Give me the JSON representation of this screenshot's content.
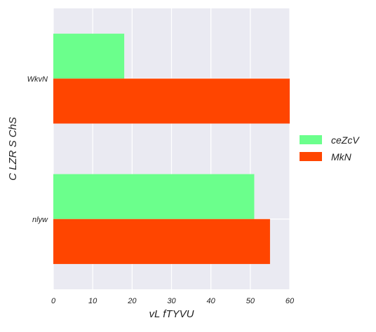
{
  "chart_data": {
    "type": "bar",
    "orientation": "horizontal",
    "title": "",
    "xlabel": "vL fTYVU",
    "ylabel": "C LZR S ChS",
    "categories": [
      "WkvN",
      "nlyw"
    ],
    "series": [
      {
        "name": "ceZcV",
        "values": [
          18,
          51
        ],
        "color": "#6bff8c"
      },
      {
        "name": "MkN",
        "values": [
          60,
          55
        ],
        "color": "#ff4500"
      }
    ],
    "xlim": [
      0,
      60
    ],
    "xticks": [
      "0",
      "10",
      "20",
      "30",
      "40",
      "50",
      "60"
    ],
    "grid": true,
    "legend": "right",
    "colors": {
      "plot_background": "#eaeaf2",
      "grid": "#ffffff"
    }
  }
}
